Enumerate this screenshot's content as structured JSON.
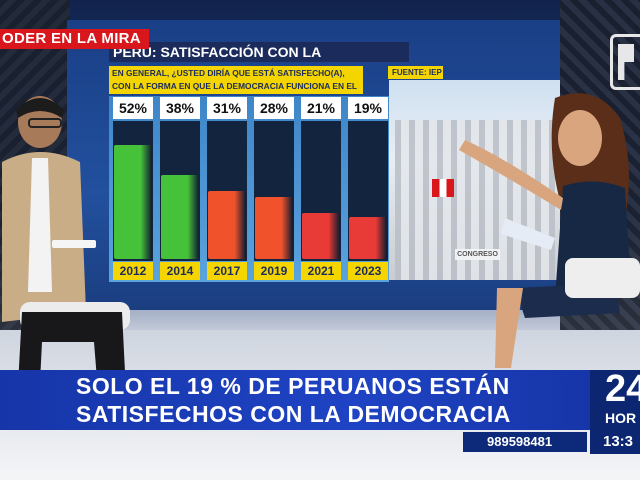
{
  "program_tag": "ODER EN LA MIRA",
  "screen": {
    "title": "PERÚ: SATISFACCIÓN CON LA DEMOCRACIA",
    "question": "EN GENERAL, ¿USTED DIRÍA QUE ESTÁ SATISFECHO(A), CON LA FORMA EN QUE LA DEMOCRACIA FUNCIONA EN EL PERÚ?",
    "source": "FUENTE: IEP",
    "building_sign": "CONGRESO"
  },
  "chart_data": {
    "type": "bar",
    "categories": [
      "2012",
      "2014",
      "2017",
      "2019",
      "2021",
      "2023"
    ],
    "values": [
      52,
      38,
      31,
      28,
      21,
      19
    ],
    "labels": [
      "52%",
      "38%",
      "31%",
      "28%",
      "21%",
      "19%"
    ],
    "unit": "%",
    "ylim": [
      0,
      60
    ],
    "colors": [
      "#46c23a",
      "#46c23a",
      "#f0522c",
      "#f0522c",
      "#e83a36",
      "#e83a36"
    ]
  },
  "lower_third": {
    "line1": "SOLO EL 19 % DE PERUANOS ESTÁN",
    "line2": "SATISFECHOS CON LA DEMOCRACIA",
    "phone": "989598481",
    "phone_icon": "whatsapp-icon"
  },
  "brand": {
    "logo_text": "24",
    "horas": "HOR",
    "time": "13:3",
    "accent_color": "#d9161c",
    "lower_third_color": "#1e43c4"
  }
}
